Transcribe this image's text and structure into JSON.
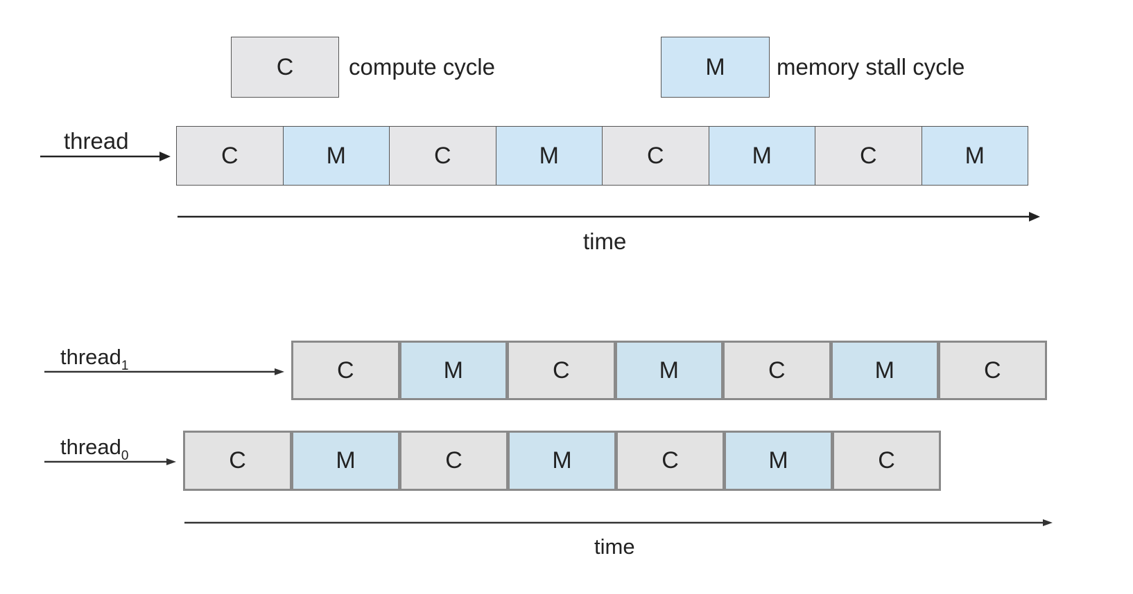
{
  "legend": {
    "compute": {
      "symbol": "C",
      "label": "compute cycle"
    },
    "memory": {
      "symbol": "M",
      "label": "memory stall cycle"
    }
  },
  "single_thread": {
    "label": "thread",
    "cells": [
      "C",
      "M",
      "C",
      "M",
      "C",
      "M",
      "C",
      "M"
    ],
    "time_label": "time"
  },
  "multi_thread": {
    "thread1": {
      "label": "thread",
      "subscript": "1",
      "cells": [
        "C",
        "M",
        "C",
        "M",
        "C",
        "M",
        "C"
      ]
    },
    "thread0": {
      "label": "thread",
      "subscript": "0",
      "cells": [
        "C",
        "M",
        "C",
        "M",
        "C",
        "M",
        "C"
      ]
    },
    "time_label": "time"
  },
  "colors": {
    "compute": "#e6e6e8",
    "memory": "#cfe6f6",
    "stroke": "#333333"
  }
}
